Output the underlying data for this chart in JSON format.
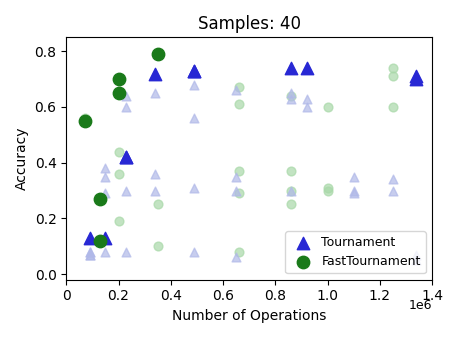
{
  "title": "Samples: 40",
  "xlabel": "Number of Operations",
  "ylabel": "Accuracy",
  "xlim": [
    0,
    1400000.0
  ],
  "ylim": [
    -0.02,
    0.85
  ],
  "tournament_x": [
    90000,
    150000,
    230000,
    230000,
    340000,
    490000,
    490000,
    860000,
    920000,
    1340000,
    1340000
  ],
  "tournament_y": [
    0.13,
    0.13,
    0.42,
    0.42,
    0.72,
    0.73,
    0.73,
    0.74,
    0.74,
    0.71,
    0.7
  ],
  "fast_tournament_x": [
    70000,
    130000,
    130000,
    200000,
    200000,
    350000
  ],
  "fast_tournament_y": [
    0.55,
    0.12,
    0.27,
    0.65,
    0.7,
    0.79
  ],
  "tournament_all_x": [
    90000,
    90000,
    90000,
    90000,
    150000,
    150000,
    150000,
    150000,
    230000,
    230000,
    230000,
    230000,
    340000,
    340000,
    340000,
    490000,
    490000,
    490000,
    490000,
    650000,
    650000,
    650000,
    650000,
    860000,
    860000,
    860000,
    920000,
    920000,
    1100000,
    1100000,
    1100000,
    1250000,
    1250000,
    1340000,
    1340000
  ],
  "tournament_all_y": [
    0.08,
    0.08,
    0.07,
    0.07,
    0.38,
    0.35,
    0.29,
    0.08,
    0.64,
    0.6,
    0.3,
    0.08,
    0.65,
    0.36,
    0.3,
    0.68,
    0.56,
    0.31,
    0.08,
    0.66,
    0.35,
    0.3,
    0.06,
    0.65,
    0.63,
    0.3,
    0.63,
    0.6,
    0.35,
    0.3,
    0.29,
    0.34,
    0.3,
    0.07,
    0.05
  ],
  "fast_tournament_all_x": [
    70000,
    130000,
    130000,
    200000,
    200000,
    200000,
    200000,
    200000,
    350000,
    350000,
    350000,
    660000,
    660000,
    660000,
    660000,
    660000,
    860000,
    860000,
    860000,
    860000,
    1000000,
    1000000,
    1000000,
    1250000,
    1250000,
    1250000
  ],
  "fast_tournament_all_y": [
    0.56,
    0.12,
    0.27,
    0.65,
    0.7,
    0.44,
    0.36,
    0.19,
    0.79,
    0.25,
    0.1,
    0.67,
    0.61,
    0.37,
    0.29,
    0.08,
    0.64,
    0.37,
    0.3,
    0.25,
    0.6,
    0.31,
    0.3,
    0.74,
    0.71,
    0.6
  ],
  "color_tournament_main": "#2828d4",
  "color_tournament_faded": "#b0b8e8",
  "color_fast_main": "#1a7a1a",
  "color_fast_faded": "#a8d8a8",
  "marker_size_main": 80,
  "marker_size_faded": 40
}
